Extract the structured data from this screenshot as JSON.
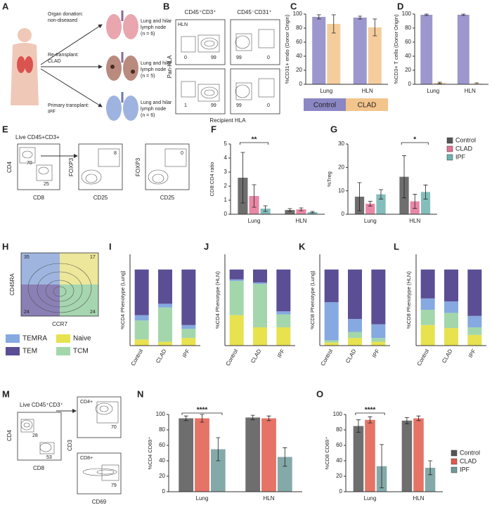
{
  "figure": {
    "letters": [
      "A",
      "B",
      "C",
      "D",
      "E",
      "F",
      "G",
      "H",
      "I",
      "J",
      "K",
      "L",
      "M",
      "N",
      "O"
    ],
    "A": {
      "rows": [
        {
          "group": [
            "Organ donation:",
            "non-diseased"
          ],
          "sample": [
            "Lung and hilar",
            "lymph node",
            "(n = 6)"
          ]
        },
        {
          "group": [
            "Re-transplant:",
            "CLAD"
          ],
          "sample": [
            "Lung and hilar",
            "lymph node",
            "(n = 5)"
          ]
        },
        {
          "group": [
            "Primary transplant:",
            "IPF"
          ],
          "sample": [
            "Lung and hilar",
            "lymph node",
            "(n = 6)"
          ]
        }
      ]
    },
    "B": {
      "col1": "CD45⁺CD3⁺",
      "col2": "CD45⁻CD31⁺",
      "tissue": "HLN",
      "ylabel": "Pan-HLA",
      "xlabel": "Recipient HLA",
      "gates": [
        0,
        99,
        99,
        0,
        1,
        99,
        99,
        0
      ]
    },
    "E": {
      "title": "Live CD45+CD3+",
      "y1": "CD4",
      "x1": "CD8",
      "g1": [
        70,
        25
      ],
      "y2": "FOXP3",
      "x2": "CD25",
      "g2": 8,
      "y3": "FOXP3",
      "x3": "CD25",
      "g3": 0
    },
    "H": {
      "ylabel": "CD45RA",
      "xlabel": "CCR7",
      "quadrants": [
        35,
        17,
        24,
        24
      ]
    },
    "M": {
      "title": "Live CD45⁺CD3⁺",
      "y1": "CD4",
      "x1": "CD8",
      "g1": [
        28,
        53
      ],
      "top": "CD4+",
      "ylabel": "CD3",
      "g2": 70,
      "bottom": "CD8+",
      "xlabel": "CD69",
      "g3": 79
    }
  },
  "chart_data": [
    {
      "type": "bar",
      "ylabel": "%CD31+ endo (Donor Origin)",
      "categories": [
        "Lung",
        "HLN"
      ],
      "series": [
        {
          "name": "Control",
          "color": "#8b86c4",
          "values": [
            96,
            95
          ],
          "errors": [
            3,
            2
          ]
        },
        {
          "name": "CLAD",
          "color": "#f3c48c",
          "values": [
            86,
            81
          ],
          "errors": [
            13,
            12
          ]
        }
      ],
      "ylim": [
        0,
        100
      ],
      "yticks": [
        0,
        20,
        40,
        60,
        80,
        100
      ],
      "legend": "bottom"
    },
    {
      "type": "bar",
      "ylabel": "%CD3+ T cells (Donor Origin)",
      "categories": [
        "Lung",
        "HLN"
      ],
      "series": [
        {
          "name": "Control",
          "color": "#8b86c4",
          "values": [
            99,
            99
          ],
          "errors": [
            1,
            1
          ]
        },
        {
          "name": "CLAD",
          "color": "#f3c48c",
          "values": [
            2,
            1
          ],
          "errors": [
            1,
            1
          ]
        }
      ],
      "ylim": [
        0,
        100
      ],
      "yticks": [
        0,
        20,
        40,
        60,
        80,
        100
      ]
    },
    {
      "type": "bar",
      "ylabel": "CD8:CD4 ratio",
      "categories": [
        "Lung",
        "HLN"
      ],
      "annotation": "**",
      "series": [
        {
          "name": "Control",
          "color": "#555555",
          "values": [
            2.6,
            0.3
          ],
          "errors": [
            1.8,
            0.1
          ]
        },
        {
          "name": "CLAD",
          "color": "#e57396",
          "values": [
            1.3,
            0.35
          ],
          "errors": [
            0.8,
            0.1
          ]
        },
        {
          "name": "IPF",
          "color": "#6db3b0",
          "values": [
            0.4,
            0.15
          ],
          "errors": [
            0.2,
            0.05
          ]
        }
      ],
      "ylim": [
        0,
        5
      ],
      "yticks": [
        0,
        1,
        2,
        3,
        4,
        5
      ]
    },
    {
      "type": "bar",
      "ylabel": "%Treg",
      "categories": [
        "Lung",
        "HLN"
      ],
      "annotation": "*",
      "series": [
        {
          "name": "Control",
          "color": "#555555",
          "values": [
            7.5,
            16
          ],
          "errors": [
            6,
            9
          ]
        },
        {
          "name": "CLAD",
          "color": "#e57396",
          "values": [
            4.5,
            5.5
          ],
          "errors": [
            1,
            3
          ]
        },
        {
          "name": "IPF",
          "color": "#6db3b0",
          "values": [
            8.5,
            9.5
          ],
          "errors": [
            2,
            3
          ]
        }
      ],
      "ylim": [
        0,
        30
      ],
      "yticks": [
        0,
        10,
        20,
        30
      ],
      "legend": "top-right"
    },
    {
      "type": "stacked",
      "ylabel": "%CD4 Phenotype (Lung)",
      "categories": [
        "Control",
        "CLAD",
        "IPF"
      ],
      "ylim": [
        0,
        120
      ],
      "legend": "left",
      "series": [
        {
          "name": "Naive",
          "color": "#e8e24e",
          "values": [
            8,
            5,
            10
          ]
        },
        {
          "name": "TCM",
          "color": "#a3d7ab",
          "values": [
            25,
            45,
            12
          ]
        },
        {
          "name": "TEMRA",
          "color": "#85a9e0",
          "values": [
            7,
            5,
            5
          ]
        },
        {
          "name": "TEM",
          "color": "#5b4e94",
          "values": [
            60,
            45,
            73
          ]
        }
      ]
    },
    {
      "type": "stacked",
      "ylabel": "%CD4 Phenotype (HLN)",
      "categories": [
        "Control",
        "CLAD",
        "IPF"
      ],
      "ylim": [
        0,
        120
      ],
      "series": [
        {
          "name": "Naive",
          "color": "#e8e24e",
          "values": [
            40,
            24,
            24
          ]
        },
        {
          "name": "TCM",
          "color": "#a3d7ab",
          "values": [
            45,
            57,
            17
          ]
        },
        {
          "name": "TEMRA",
          "color": "#85a9e0",
          "values": [
            2,
            2,
            4
          ]
        },
        {
          "name": "TEM",
          "color": "#5b4e94",
          "values": [
            13,
            17,
            55
          ]
        }
      ]
    },
    {
      "type": "stacked",
      "ylabel": "%CD8 Phenotype (Lung)",
      "categories": [
        "Control",
        "CLAD",
        "IPF"
      ],
      "ylim": [
        0,
        120
      ],
      "series": [
        {
          "name": "Naive",
          "color": "#e8e24e",
          "values": [
            4,
            10,
            5
          ]
        },
        {
          "name": "TCM",
          "color": "#a3d7ab",
          "values": [
            3,
            8,
            5
          ]
        },
        {
          "name": "TEMRA",
          "color": "#85a9e0",
          "values": [
            50,
            17,
            18
          ]
        },
        {
          "name": "TEM",
          "color": "#5b4e94",
          "values": [
            43,
            65,
            72
          ]
        }
      ]
    },
    {
      "type": "stacked",
      "ylabel": "%CD8 Phenotype (HLN)",
      "categories": [
        "Control",
        "CLAD",
        "IPF"
      ],
      "ylim": [
        0,
        120
      ],
      "series": [
        {
          "name": "Naive",
          "color": "#e8e24e",
          "values": [
            27,
            23,
            14
          ]
        },
        {
          "name": "TCM",
          "color": "#a3d7ab",
          "values": [
            20,
            20,
            10
          ]
        },
        {
          "name": "TEMRA",
          "color": "#85a9e0",
          "values": [
            15,
            15,
            15
          ]
        },
        {
          "name": "TEM",
          "color": "#5b4e94",
          "values": [
            38,
            42,
            61
          ]
        }
      ]
    },
    {
      "type": "bar",
      "ylabel": "%CD4 CD69⁺",
      "categories": [
        "Lung",
        "HLN"
      ],
      "annotation": "****",
      "series": [
        {
          "name": "Control",
          "color": "#555555",
          "values": [
            95,
            96
          ],
          "errors": [
            3,
            3
          ]
        },
        {
          "name": "CLAD",
          "color": "#e05a4b",
          "values": [
            95,
            95
          ],
          "errors": [
            5,
            3
          ]
        },
        {
          "name": "IPF",
          "color": "#6f9a9a",
          "values": [
            55,
            45
          ],
          "errors": [
            15,
            12
          ]
        }
      ],
      "ylim": [
        0,
        100
      ],
      "yticks": [
        0,
        20,
        40,
        60,
        80,
        100
      ]
    },
    {
      "type": "bar",
      "ylabel": "%CD8 CD69⁺",
      "categories": [
        "Lung",
        "HLN"
      ],
      "annotation": "****",
      "series": [
        {
          "name": "Control",
          "color": "#555555",
          "values": [
            85,
            92
          ],
          "errors": [
            8,
            4
          ]
        },
        {
          "name": "CLAD",
          "color": "#e05a4b",
          "values": [
            93,
            95
          ],
          "errors": [
            4,
            3
          ]
        },
        {
          "name": "IPF",
          "color": "#6f9a9a",
          "values": [
            33,
            31
          ],
          "errors": [
            28,
            9
          ]
        }
      ],
      "ylim": [
        0,
        100
      ],
      "yticks": [
        0,
        20,
        40,
        60,
        80,
        100
      ],
      "legend": "right"
    }
  ]
}
